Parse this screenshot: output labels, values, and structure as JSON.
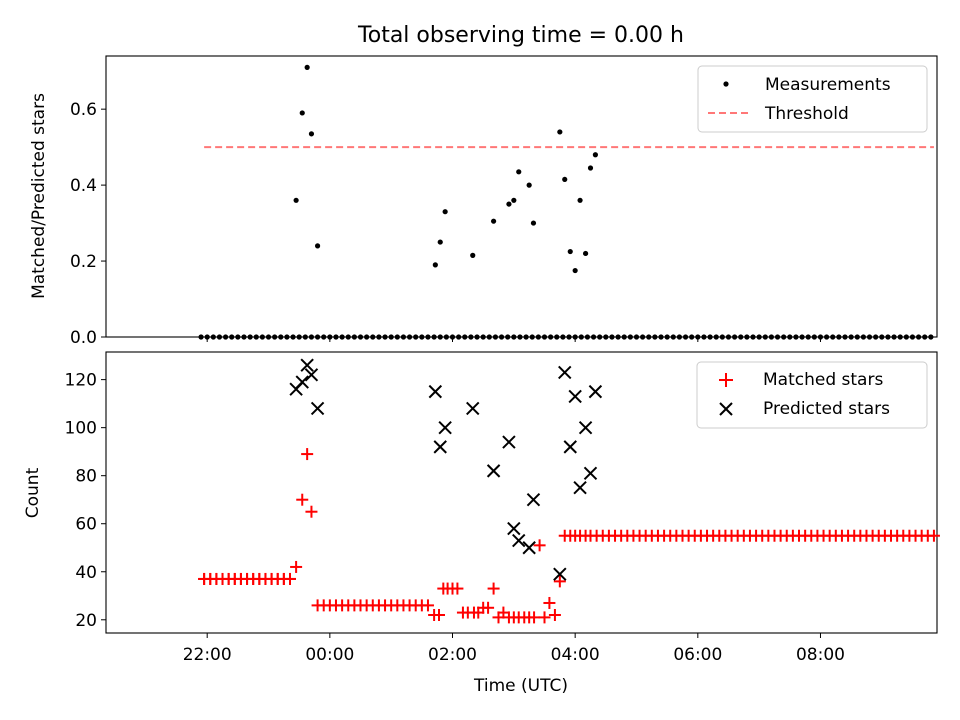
{
  "title": "Total observing time = 0.00 h",
  "xlabel": "Time (UTC)",
  "x_ticks": [
    "22:00",
    "00:00",
    "02:00",
    "04:00",
    "06:00",
    "08:00"
  ],
  "x_unit": "hours after 21:00 UTC",
  "x_range": [
    20.35,
    33.9
  ],
  "chart_data": [
    {
      "type": "scatter",
      "ylabel": "Matched/Predicted stars",
      "ylim": [
        0,
        0.74
      ],
      "yticks": [
        0.0,
        0.2,
        0.4,
        0.6
      ],
      "ytick_labels": [
        "0.0",
        "0.2",
        "0.4",
        "0.6"
      ],
      "legend": "top-right",
      "threshold": {
        "name": "Threshold",
        "y": 0.5,
        "x": [
          21.95,
          33.85
        ],
        "color": "#ff7777"
      },
      "series": [
        {
          "name": "Measurements",
          "color": "#000000",
          "x": [
            21.9,
            22.0,
            22.1,
            22.2,
            22.3,
            22.4,
            22.5,
            22.6,
            22.7,
            22.8,
            22.9,
            23.0,
            23.1,
            23.2,
            23.3,
            23.4,
            23.5,
            23.6,
            23.7,
            23.8,
            23.9,
            24.0,
            24.1,
            24.2,
            24.3,
            24.4,
            24.5,
            24.6,
            24.7,
            24.8,
            24.9,
            25.0,
            25.1,
            25.2,
            25.3,
            25.4,
            25.5,
            25.6,
            25.7,
            25.8,
            25.9,
            26.0,
            26.1,
            26.2,
            26.3,
            26.4,
            26.5,
            26.6,
            26.7,
            26.8,
            26.9,
            27.0,
            27.1,
            27.2,
            27.3,
            27.4,
            27.5,
            27.6,
            27.7,
            27.8,
            27.9,
            28.0,
            28.1,
            28.2,
            28.3,
            28.4,
            28.5,
            28.6,
            28.7,
            28.8,
            28.9,
            29.0,
            29.1,
            29.2,
            29.3,
            29.4,
            29.5,
            29.6,
            29.7,
            29.8,
            29.9,
            30.0,
            30.1,
            30.2,
            30.3,
            30.4,
            30.5,
            30.6,
            30.7,
            30.8,
            30.9,
            31.0,
            31.1,
            31.2,
            31.3,
            31.4,
            31.5,
            31.6,
            31.7,
            31.8,
            31.9,
            32.0,
            32.1,
            32.2,
            32.3,
            32.4,
            32.5,
            32.6,
            32.7,
            32.8,
            32.9,
            33.0,
            33.1,
            33.2,
            33.3,
            33.4,
            33.5,
            33.6,
            33.7,
            33.8,
            23.45,
            23.55,
            23.63,
            23.7,
            23.8,
            25.72,
            25.8,
            25.88,
            26.33,
            26.67,
            26.92,
            27.0,
            27.08,
            27.25,
            27.32,
            27.75,
            27.83,
            27.92,
            28.0,
            28.08,
            28.17,
            28.25,
            28.33
          ],
          "y": [
            0,
            0,
            0,
            0,
            0,
            0,
            0,
            0,
            0,
            0,
            0,
            0,
            0,
            0,
            0,
            0,
            0,
            0,
            0,
            0,
            0,
            0,
            0,
            0,
            0,
            0,
            0,
            0,
            0,
            0,
            0,
            0,
            0,
            0,
            0,
            0,
            0,
            0,
            0,
            0,
            0,
            0,
            0,
            0,
            0,
            0,
            0,
            0,
            0,
            0,
            0,
            0,
            0,
            0,
            0,
            0,
            0,
            0,
            0,
            0,
            0,
            0,
            0,
            0,
            0,
            0,
            0,
            0,
            0,
            0,
            0,
            0,
            0,
            0,
            0,
            0,
            0,
            0,
            0,
            0,
            0,
            0,
            0,
            0,
            0,
            0,
            0,
            0,
            0,
            0,
            0,
            0,
            0,
            0,
            0,
            0,
            0,
            0,
            0,
            0,
            0,
            0,
            0,
            0,
            0,
            0,
            0,
            0,
            0,
            0,
            0,
            0,
            0,
            0,
            0,
            0,
            0,
            0,
            0,
            0,
            0.36,
            0.59,
            0.71,
            0.535,
            0.24,
            0.19,
            0.25,
            0.33,
            0.215,
            0.305,
            0.35,
            0.36,
            0.435,
            0.4,
            0.3,
            0.54,
            0.415,
            0.225,
            0.175,
            0.36,
            0.22,
            0.445,
            0.48
          ]
        }
      ]
    },
    {
      "type": "scatter",
      "ylabel": "Count",
      "ylim": [
        14.5,
        131.5
      ],
      "yticks": [
        20,
        40,
        60,
        80,
        100,
        120
      ],
      "ytick_labels": [
        "20",
        "40",
        "60",
        "80",
        "100",
        "120"
      ],
      "legend": "top-right",
      "series": [
        {
          "name": "Matched stars",
          "color": "#ff0000",
          "x": [
            21.95,
            22.05,
            22.15,
            22.25,
            22.35,
            22.45,
            22.55,
            22.65,
            22.75,
            22.85,
            22.95,
            23.05,
            23.15,
            23.25,
            23.35,
            21.95,
            22.05,
            22.15,
            22.25,
            22.35,
            22.45,
            22.55,
            22.65,
            22.75,
            22.85,
            22.95,
            23.05,
            23.15,
            23.25,
            23.35,
            23.45,
            23.55,
            23.63,
            23.7,
            23.8,
            23.9,
            24.0,
            24.1,
            24.2,
            24.3,
            24.4,
            24.5,
            24.6,
            24.7,
            24.8,
            24.9,
            25.0,
            25.1,
            25.2,
            25.3,
            25.4,
            25.5,
            25.6,
            25.7,
            25.78,
            25.85,
            25.92,
            26.0,
            26.08,
            26.17,
            26.25,
            26.35,
            26.42,
            26.5,
            26.58,
            26.67,
            26.75,
            26.83,
            26.92,
            27.0,
            27.08,
            27.17,
            27.25,
            27.33,
            27.42,
            27.5,
            27.58,
            27.67,
            27.75,
            27.83,
            27.92,
            28.0,
            28.08,
            28.17,
            28.25,
            28.35,
            28.45,
            28.55,
            28.65,
            28.75,
            28.85,
            28.95,
            29.05,
            29.15,
            29.25,
            29.35,
            29.45,
            29.55,
            29.65,
            29.75,
            29.85,
            29.95,
            30.05,
            30.15,
            30.25,
            30.35,
            30.45,
            30.55,
            30.65,
            30.75,
            30.85,
            30.95,
            31.05,
            31.15,
            31.25,
            31.35,
            31.45,
            31.55,
            31.65,
            31.75,
            31.85,
            31.95,
            32.05,
            32.15,
            32.25,
            32.35,
            32.45,
            32.55,
            32.65,
            32.75,
            32.85,
            32.95,
            33.05,
            33.15,
            33.25,
            33.35,
            33.45,
            33.55,
            33.65,
            33.75,
            33.85
          ],
          "y": [
            37,
            37,
            37,
            37,
            37,
            37,
            37,
            37,
            37,
            37,
            37,
            37,
            37,
            37,
            37,
            37,
            37,
            37,
            37,
            37,
            37,
            37,
            37,
            37,
            37,
            37,
            37,
            37,
            37,
            37,
            42,
            70,
            89,
            65,
            26,
            26,
            26,
            26,
            26,
            26,
            26,
            26,
            26,
            26,
            26,
            26,
            26,
            26,
            26,
            26,
            26,
            26,
            26,
            22,
            22,
            33,
            33,
            33,
            33,
            23,
            23,
            23,
            23,
            25,
            25,
            33,
            21,
            23,
            21,
            21,
            21,
            21,
            21,
            21,
            51,
            21,
            27,
            22,
            36,
            55,
            55,
            55,
            55,
            55,
            55,
            55,
            55,
            55,
            55,
            55,
            55,
            55,
            55,
            55,
            55,
            55,
            55,
            55,
            55,
            55,
            55,
            55,
            55,
            55,
            55,
            55,
            55,
            55,
            55,
            55,
            55,
            55,
            55,
            55,
            55,
            55,
            55,
            55,
            55,
            55,
            55,
            55,
            55,
            55,
            55,
            55,
            55,
            55,
            55,
            55,
            55,
            55,
            55,
            55,
            55,
            55,
            55,
            55,
            55,
            55,
            55
          ]
        },
        {
          "name": "Predicted stars",
          "color": "#000000",
          "x": [
            23.45,
            23.55,
            23.63,
            23.7,
            23.8,
            25.72,
            25.8,
            25.88,
            26.33,
            26.67,
            26.92,
            27.0,
            27.08,
            27.25,
            27.32,
            27.75,
            27.83,
            27.92,
            28.0,
            28.08,
            28.17,
            28.25,
            28.33
          ],
          "y": [
            116,
            119,
            126,
            122,
            108,
            115,
            92,
            100,
            108,
            82,
            94,
            58,
            53,
            50,
            70,
            39,
            123,
            92,
            113,
            75,
            100,
            81,
            115
          ]
        }
      ]
    }
  ]
}
